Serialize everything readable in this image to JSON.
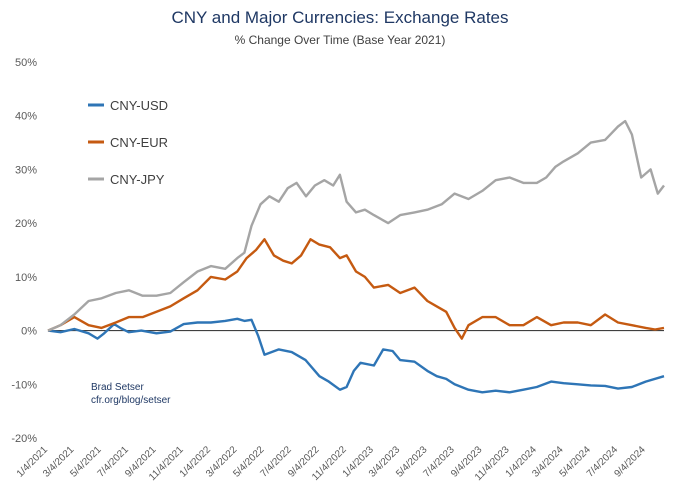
{
  "chart_data": {
    "type": "line",
    "title": "CNY and Major Currencies: Exchange Rates",
    "subtitle": "% Change Over Time (Base Year 2021)",
    "xlabel": "",
    "ylabel": "",
    "ylim": [
      -20,
      50
    ],
    "yticks": [
      -20,
      -10,
      0,
      10,
      20,
      30,
      40,
      50
    ],
    "ytick_labels": [
      "-20%",
      "-10%",
      "0%",
      "10%",
      "20%",
      "30%",
      "40%",
      "50%"
    ],
    "xlim": [
      "2021-01-04",
      "2024-10-15"
    ],
    "xticks": [
      "2021-01-04",
      "2021-03-04",
      "2021-05-04",
      "2021-07-04",
      "2021-09-04",
      "2021-11-04",
      "2022-01-04",
      "2022-03-04",
      "2022-05-04",
      "2022-07-04",
      "2022-09-04",
      "2022-11-04",
      "2023-01-04",
      "2023-03-04",
      "2023-05-04",
      "2023-07-04",
      "2023-09-04",
      "2023-11-04",
      "2024-01-04",
      "2024-03-04",
      "2024-05-04",
      "2024-07-04",
      "2024-09-04"
    ],
    "xtick_labels": [
      "1/4/2021",
      "3/4/2021",
      "5/4/2021",
      "7/4/2021",
      "9/4/2021",
      "11/4/2021",
      "1/4/2022",
      "3/4/2022",
      "5/4/2022",
      "7/4/2022",
      "9/4/2022",
      "11/4/2022",
      "1/4/2023",
      "3/4/2023",
      "5/4/2023",
      "7/4/2023",
      "9/4/2023",
      "11/4/2023",
      "1/4/2024",
      "3/4/2024",
      "5/4/2024",
      "7/4/2024",
      "9/4/2024"
    ],
    "grid": false,
    "zero_line": true,
    "legend_position": "upper-left",
    "annotation": [
      "Brad Setser",
      "cfr.org/blog/setser"
    ],
    "series": [
      {
        "name": "CNY-USD",
        "color": "#2e75b6",
        "x": [
          "2021-01-04",
          "2021-02-01",
          "2021-03-04",
          "2021-04-05",
          "2021-04-25",
          "2021-05-10",
          "2021-06-01",
          "2021-06-15",
          "2021-07-04",
          "2021-08-01",
          "2021-09-04",
          "2021-10-05",
          "2021-11-04",
          "2021-12-05",
          "2022-01-04",
          "2022-02-05",
          "2022-03-04",
          "2022-03-20",
          "2022-04-05",
          "2022-04-20",
          "2022-05-04",
          "2022-06-05",
          "2022-07-04",
          "2022-08-04",
          "2022-09-04",
          "2022-09-25",
          "2022-10-20",
          "2022-11-04",
          "2022-11-20",
          "2022-12-05",
          "2023-01-04",
          "2023-01-25",
          "2023-02-15",
          "2023-03-04",
          "2023-04-05",
          "2023-05-04",
          "2023-05-25",
          "2023-06-15",
          "2023-07-04",
          "2023-08-04",
          "2023-09-04",
          "2023-10-04",
          "2023-11-04",
          "2023-12-05",
          "2024-01-04",
          "2024-02-05",
          "2024-03-04",
          "2024-04-05",
          "2024-05-04",
          "2024-06-05",
          "2024-07-04",
          "2024-08-04",
          "2024-09-04",
          "2024-10-15"
        ],
        "values": [
          0.0,
          -0.3,
          0.3,
          -0.5,
          -1.5,
          -0.5,
          1.2,
          0.5,
          -0.3,
          0.0,
          -0.5,
          -0.2,
          1.2,
          1.5,
          1.5,
          1.8,
          2.2,
          1.8,
          2.0,
          -1.0,
          -4.5,
          -3.5,
          -4.0,
          -5.5,
          -8.5,
          -9.5,
          -11.0,
          -10.5,
          -7.5,
          -6.0,
          -6.5,
          -3.5,
          -3.8,
          -5.5,
          -5.8,
          -7.5,
          -8.5,
          -9.0,
          -10.0,
          -11.0,
          -11.5,
          -11.2,
          -11.5,
          -11.0,
          -10.5,
          -9.5,
          -9.8,
          -10.0,
          -10.2,
          -10.3,
          -10.8,
          -10.5,
          -9.5,
          -8.5
        ]
      },
      {
        "name": "CNY-EUR",
        "color": "#c55a11",
        "x": [
          "2021-01-04",
          "2021-02-01",
          "2021-03-04",
          "2021-04-05",
          "2021-05-04",
          "2021-06-05",
          "2021-07-04",
          "2021-08-04",
          "2021-09-04",
          "2021-10-05",
          "2021-11-04",
          "2021-12-05",
          "2022-01-04",
          "2022-02-05",
          "2022-03-04",
          "2022-03-25",
          "2022-04-15",
          "2022-05-04",
          "2022-05-25",
          "2022-06-15",
          "2022-07-04",
          "2022-07-25",
          "2022-08-15",
          "2022-09-04",
          "2022-09-28",
          "2022-10-20",
          "2022-11-04",
          "2022-11-25",
          "2022-12-15",
          "2023-01-04",
          "2023-02-05",
          "2023-03-04",
          "2023-04-05",
          "2023-05-04",
          "2023-05-25",
          "2023-06-15",
          "2023-07-04",
          "2023-07-20",
          "2023-08-04",
          "2023-09-04",
          "2023-10-04",
          "2023-11-04",
          "2023-12-05",
          "2024-01-04",
          "2024-02-05",
          "2024-03-04",
          "2024-04-05",
          "2024-05-04",
          "2024-06-05",
          "2024-07-04",
          "2024-08-04",
          "2024-09-04",
          "2024-09-25",
          "2024-10-15"
        ],
        "values": [
          0.0,
          1.0,
          2.5,
          1.0,
          0.5,
          1.5,
          2.5,
          2.5,
          3.5,
          4.5,
          6.0,
          7.5,
          10.0,
          9.5,
          11.0,
          13.5,
          15.0,
          17.0,
          14.0,
          13.0,
          12.5,
          14.0,
          17.0,
          16.0,
          15.5,
          13.5,
          14.0,
          11.0,
          10.0,
          8.0,
          8.5,
          7.0,
          8.0,
          5.5,
          4.5,
          3.5,
          0.5,
          -1.5,
          1.0,
          2.5,
          2.5,
          1.0,
          1.0,
          2.5,
          1.0,
          1.5,
          1.5,
          1.0,
          3.0,
          1.5,
          1.0,
          0.5,
          0.2,
          0.5
        ]
      },
      {
        "name": "CNY-JPY",
        "color": "#a5a5a5",
        "x": [
          "2021-01-04",
          "2021-02-01",
          "2021-03-04",
          "2021-04-05",
          "2021-05-04",
          "2021-06-05",
          "2021-07-04",
          "2021-08-04",
          "2021-09-04",
          "2021-10-05",
          "2021-11-04",
          "2021-12-05",
          "2022-01-04",
          "2022-02-05",
          "2022-03-04",
          "2022-03-20",
          "2022-04-05",
          "2022-04-25",
          "2022-05-15",
          "2022-06-05",
          "2022-06-25",
          "2022-07-15",
          "2022-08-05",
          "2022-08-25",
          "2022-09-15",
          "2022-10-05",
          "2022-10-20",
          "2022-11-04",
          "2022-11-25",
          "2022-12-15",
          "2023-01-04",
          "2023-02-05",
          "2023-03-04",
          "2023-04-05",
          "2023-05-04",
          "2023-06-05",
          "2023-07-04",
          "2023-08-04",
          "2023-09-04",
          "2023-10-04",
          "2023-11-04",
          "2023-12-05",
          "2024-01-04",
          "2024-01-25",
          "2024-02-15",
          "2024-03-04",
          "2024-04-05",
          "2024-05-04",
          "2024-06-05",
          "2024-07-04",
          "2024-07-20",
          "2024-08-04",
          "2024-08-25",
          "2024-09-15",
          "2024-10-01",
          "2024-10-15"
        ],
        "values": [
          0.0,
          1.0,
          3.0,
          5.5,
          6.0,
          7.0,
          7.5,
          6.5,
          6.5,
          7.0,
          9.0,
          11.0,
          12.0,
          11.5,
          13.5,
          14.5,
          19.5,
          23.5,
          25.0,
          24.0,
          26.5,
          27.5,
          25.0,
          27.0,
          28.0,
          27.0,
          29.0,
          24.0,
          22.0,
          22.5,
          21.5,
          20.0,
          21.5,
          22.0,
          22.5,
          23.5,
          25.5,
          24.5,
          26.0,
          28.0,
          28.5,
          27.5,
          27.5,
          28.5,
          30.5,
          31.5,
          33.0,
          35.0,
          35.5,
          38.0,
          39.0,
          36.5,
          28.5,
          30.0,
          25.5,
          27.0
        ]
      }
    ]
  }
}
